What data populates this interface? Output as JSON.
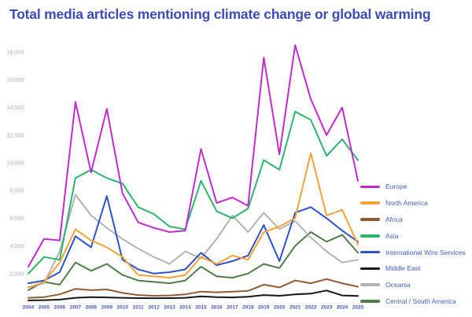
{
  "title": "Total media articles mentioning climate change or global warming",
  "colors": {
    "title": "#3C4CB4",
    "y_tick": "#A9AECB",
    "x_tick": "#4A56B0",
    "legend_text": "#3F5FC4",
    "background": "#FFFFFF"
  },
  "chart_data": {
    "type": "line",
    "title": "Total media articles mentioning climate change or global warming",
    "xlabel": "",
    "ylabel": "",
    "x": [
      2004,
      2005,
      2006,
      2007,
      2008,
      2009,
      2010,
      2011,
      2012,
      2013,
      2014,
      2015,
      2016,
      2017,
      2018,
      2019,
      2020,
      2021,
      2022,
      2023,
      2024,
      2025
    ],
    "ylim": [
      0,
      19000
    ],
    "yticks": [
      2000,
      4000,
      6000,
      8000,
      10000,
      12000,
      14000,
      16000,
      18000
    ],
    "grid": false,
    "legend_position": "right",
    "series": [
      {
        "name": "Europe",
        "color": "#C42ACB",
        "values": [
          2500,
          4500,
          4400,
          14400,
          9300,
          13900,
          7800,
          5700,
          5300,
          5000,
          5100,
          11000,
          7100,
          7500,
          6900,
          17600,
          10600,
          18500,
          14600,
          12000,
          14000,
          8700
        ]
      },
      {
        "name": "North America",
        "color": "#F2A33A",
        "values": [
          1000,
          1400,
          2800,
          5200,
          4400,
          3900,
          3200,
          1900,
          1800,
          1700,
          1900,
          3200,
          2700,
          3300,
          3000,
          5000,
          5400,
          6000,
          10700,
          6200,
          6600,
          4100
        ]
      },
      {
        "name": "Africa",
        "color": "#8E5B35",
        "values": [
          250,
          300,
          500,
          900,
          800,
          850,
          600,
          450,
          400,
          420,
          500,
          700,
          650,
          700,
          750,
          1200,
          1000,
          1500,
          1300,
          1600,
          1300,
          1050
        ]
      },
      {
        "name": "Asia",
        "color": "#29B56C",
        "values": [
          2000,
          3200,
          3000,
          8900,
          9500,
          8900,
          8500,
          6800,
          6300,
          5400,
          5200,
          8700,
          6500,
          6000,
          6700,
          10200,
          9500,
          13700,
          13100,
          10500,
          11700,
          10200
        ]
      },
      {
        "name": "International Wire Services",
        "color": "#2E52C9",
        "values": [
          1300,
          1500,
          2100,
          4700,
          3900,
          7600,
          3000,
          2300,
          2000,
          2100,
          2300,
          3500,
          2600,
          2900,
          3300,
          5500,
          2900,
          6400,
          6800,
          6000,
          5100,
          4300
        ]
      },
      {
        "name": "Middle East",
        "color": "#161616",
        "values": [
          60,
          80,
          120,
          250,
          300,
          280,
          250,
          230,
          220,
          230,
          250,
          350,
          300,
          280,
          330,
          450,
          400,
          500,
          550,
          780,
          420,
          380
        ]
      },
      {
        "name": "Oceania",
        "color": "#B3B3B3",
        "values": [
          1000,
          1300,
          3600,
          7700,
          6200,
          5300,
          4500,
          3800,
          3200,
          2700,
          3600,
          3100,
          4500,
          6200,
          5000,
          6400,
          5200,
          5800,
          4600,
          3600,
          2800,
          3000
        ]
      },
      {
        "name": "Central / South America",
        "color": "#4E7D47",
        "values": [
          800,
          1400,
          1200,
          2800,
          2200,
          2700,
          1900,
          1500,
          1400,
          1300,
          1500,
          2500,
          1800,
          1700,
          2000,
          2700,
          2400,
          4000,
          5000,
          4300,
          4800,
          3500
        ]
      }
    ]
  }
}
